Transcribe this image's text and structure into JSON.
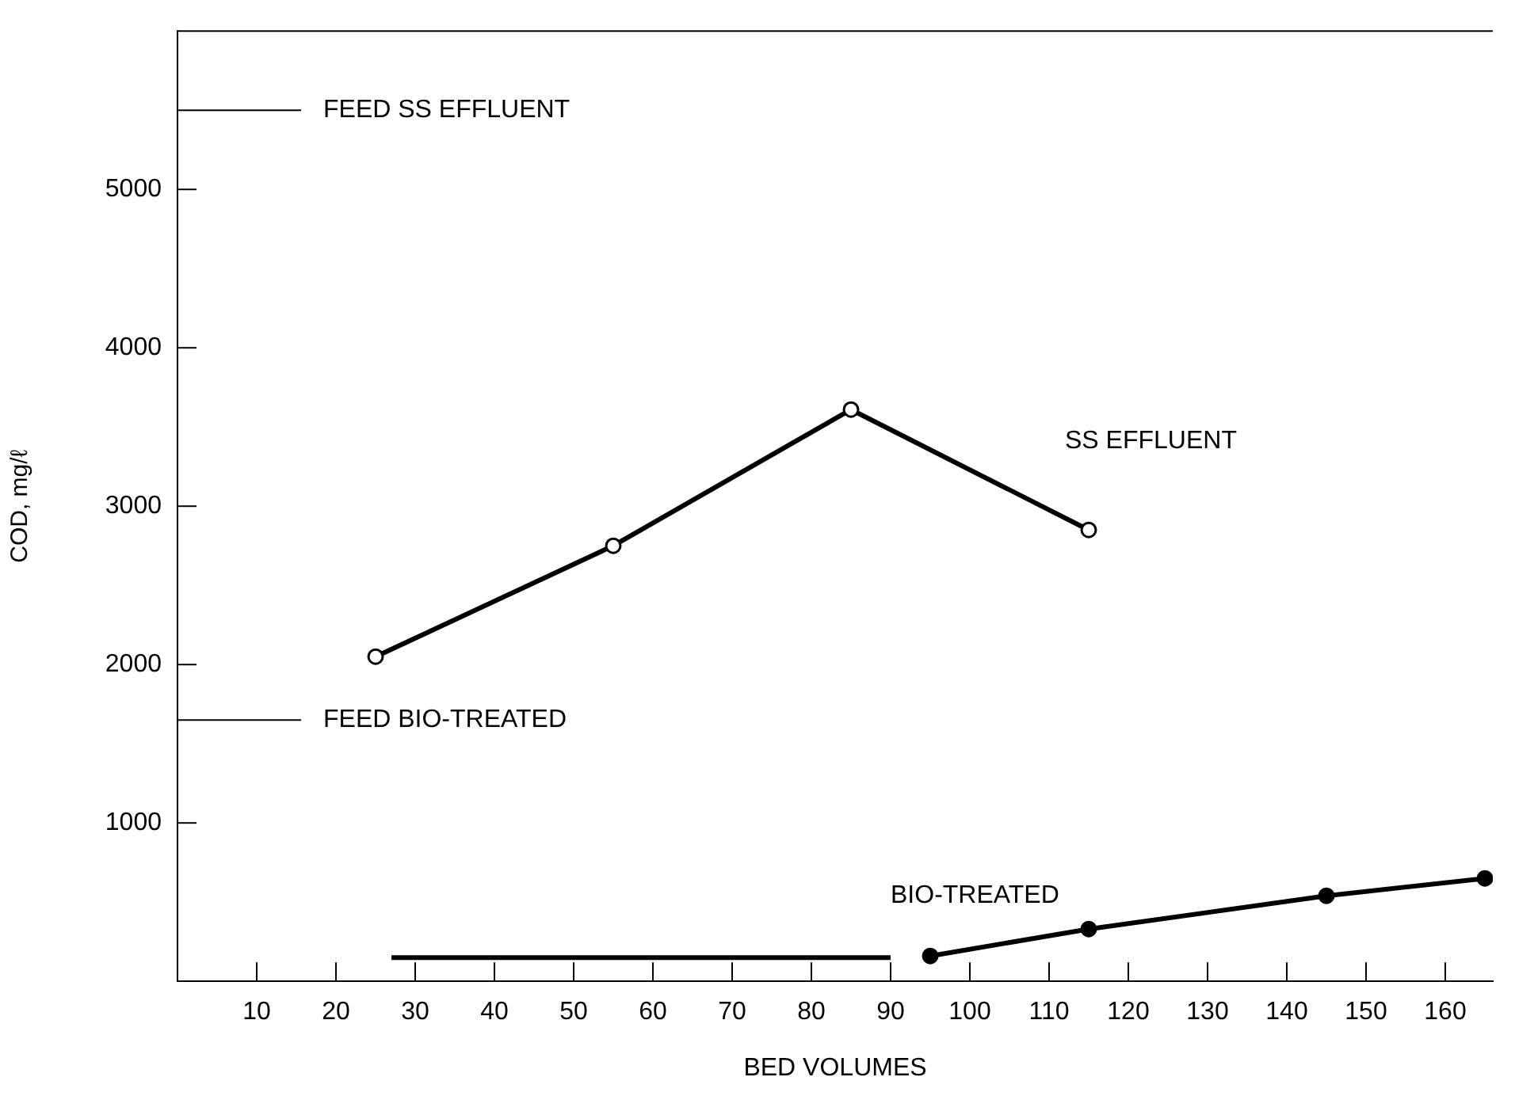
{
  "chart_data": {
    "type": "line",
    "xlabel": "BED VOLUMES",
    "ylabel": "COD, mg/ℓ",
    "xlim": [
      0,
      166
    ],
    "xticks": [
      10,
      20,
      30,
      40,
      50,
      60,
      70,
      80,
      90,
      100,
      110,
      120,
      130,
      140,
      150,
      160
    ],
    "ylim": [
      0,
      6000
    ],
    "yticks": [
      1000,
      2000,
      3000,
      4000,
      5000
    ],
    "series": [
      {
        "name": "SS EFFLUENT",
        "color": "#000000",
        "marker": "circle",
        "x": [
          25,
          55,
          85,
          115
        ],
        "values": [
          2050,
          2750,
          3610,
          2850
        ]
      },
      {
        "color": "#000000",
        "marker": "none",
        "x": [
          27,
          90
        ],
        "values": [
          150,
          150
        ]
      },
      {
        "name": "BIO-TREATED",
        "color": "#000000",
        "marker": "circle",
        "x": [
          95,
          115,
          145,
          165
        ],
        "values": [
          160,
          330,
          540,
          650
        ]
      }
    ],
    "ref_lines": [
      {
        "axis": "y",
        "value": 5500,
        "label": "FEED SS EFFLUENT",
        "color": "#000000"
      },
      {
        "axis": "y",
        "value": 1650,
        "label": "FEED BIO-TREATED",
        "color": "#000000"
      }
    ],
    "grid": false,
    "legend": false
  }
}
